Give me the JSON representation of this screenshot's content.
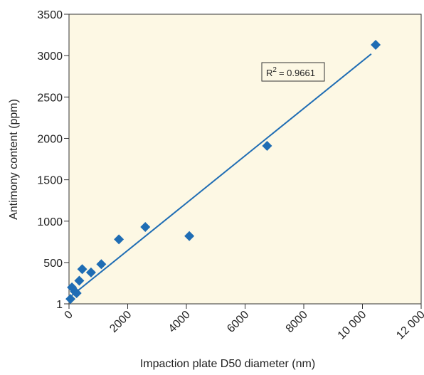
{
  "chart_data": {
    "type": "scatter",
    "x_label": "Impaction plate D50 diameter (nm)",
    "y_label": "Antimony content (ppm)",
    "x": [
      50,
      100,
      200,
      260,
      350,
      450,
      750,
      1100,
      1700,
      2600,
      4100,
      6750,
      10450
    ],
    "values": [
      60,
      200,
      150,
      130,
      280,
      420,
      380,
      480,
      780,
      930,
      820,
      1910,
      3130
    ],
    "color": "#1f6db4",
    "xlim": [
      0,
      12000
    ],
    "xticks": [
      0,
      2000,
      4000,
      6000,
      8000,
      {
        "value": 10000,
        "label": "10 000"
      },
      {
        "value": 12000,
        "label": "12 000"
      }
    ],
    "ylim": [
      1,
      3500
    ],
    "yticks": [
      1,
      500,
      1000,
      1500,
      2000,
      2500,
      3000,
      3500
    ],
    "trendline": {
      "x": [
        100,
        10300
      ],
      "values": [
        103,
        3020
      ],
      "color": "#1f6db4"
    },
    "annotation": {
      "base": "R",
      "sup": "2",
      "text": "= 0.9661"
    },
    "background": "#fdf8e4"
  }
}
